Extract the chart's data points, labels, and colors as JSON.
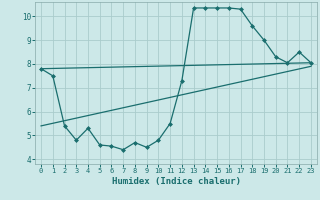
{
  "xlabel": "Humidex (Indice chaleur)",
  "background_color": "#cce8e8",
  "grid_color": "#aacccc",
  "line_color": "#1a6e6e",
  "xlim": [
    -0.5,
    23.5
  ],
  "ylim": [
    3.8,
    10.6
  ],
  "yticks": [
    4,
    5,
    6,
    7,
    8,
    9,
    10
  ],
  "xticks": [
    0,
    1,
    2,
    3,
    4,
    5,
    6,
    7,
    8,
    9,
    10,
    11,
    12,
    13,
    14,
    15,
    16,
    17,
    18,
    19,
    20,
    21,
    22,
    23
  ],
  "series": [
    {
      "x": [
        0,
        1,
        2,
        3,
        4,
        5,
        6,
        7,
        8,
        9,
        10,
        11,
        12,
        13,
        14,
        15,
        16,
        17,
        18,
        19,
        20,
        21,
        22,
        23
      ],
      "y": [
        7.8,
        7.5,
        5.4,
        4.8,
        5.3,
        4.6,
        4.55,
        4.4,
        4.7,
        4.5,
        4.8,
        5.5,
        7.3,
        10.35,
        10.35,
        10.35,
        10.35,
        10.3,
        9.6,
        9.0,
        8.3,
        8.05,
        8.5,
        8.05
      ]
    },
    {
      "x": [
        0,
        23
      ],
      "y": [
        7.8,
        8.05
      ]
    },
    {
      "x": [
        0,
        23
      ],
      "y": [
        5.4,
        7.9
      ]
    }
  ]
}
